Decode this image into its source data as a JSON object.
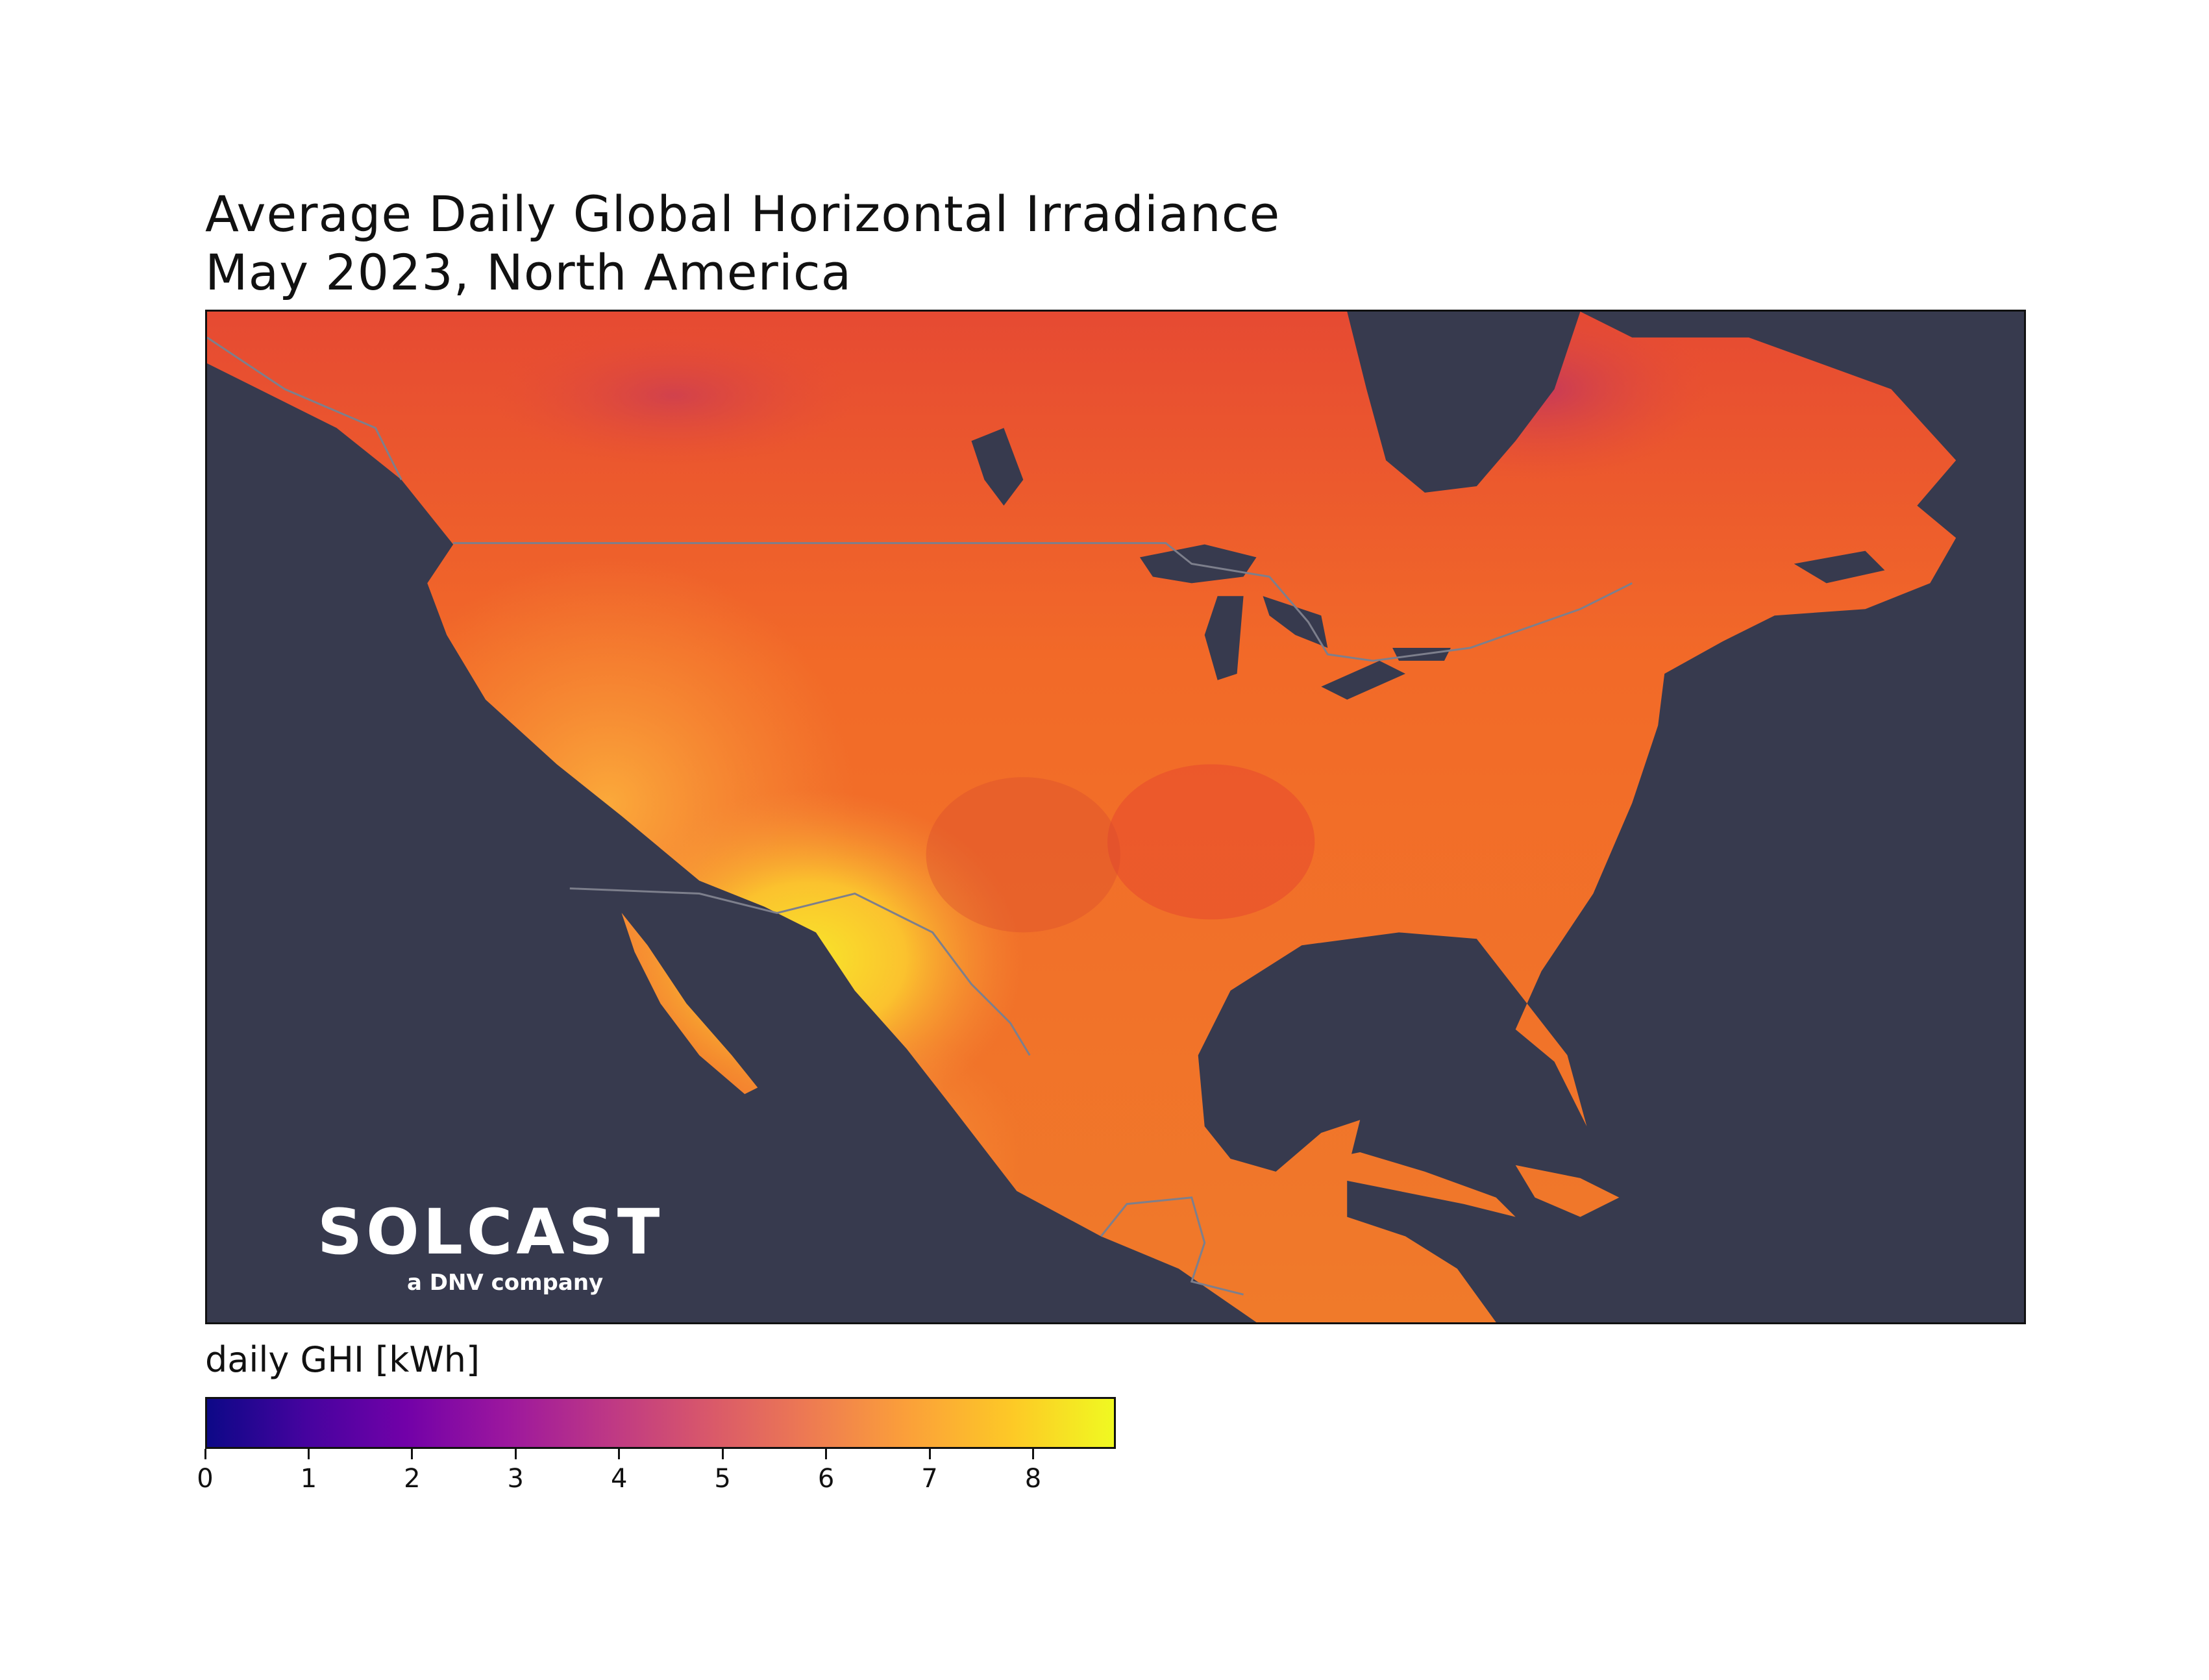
{
  "title": {
    "line1": "Average Daily Global Horizontal Irradiance",
    "line2": "May 2023, North America"
  },
  "map": {
    "region": "North America",
    "ocean_color": "#373a4e",
    "border_color": "#7d7f8c",
    "land_color_stops": [
      "#f05a2c",
      "#f26b27",
      "#f7923a",
      "#fbb431",
      "#f5dc2a"
    ]
  },
  "logo": {
    "wordmark": "SOLCAST",
    "tagline": "a DNV company"
  },
  "colorbar": {
    "label": "daily GHI [kWh]",
    "colormap": "plasma",
    "min": 0,
    "max": 8.8,
    "ticks": [
      "0",
      "1",
      "2",
      "3",
      "4",
      "5",
      "6",
      "7",
      "8"
    ],
    "tick_values": [
      0,
      1,
      2,
      3,
      4,
      5,
      6,
      7,
      8
    ]
  }
}
